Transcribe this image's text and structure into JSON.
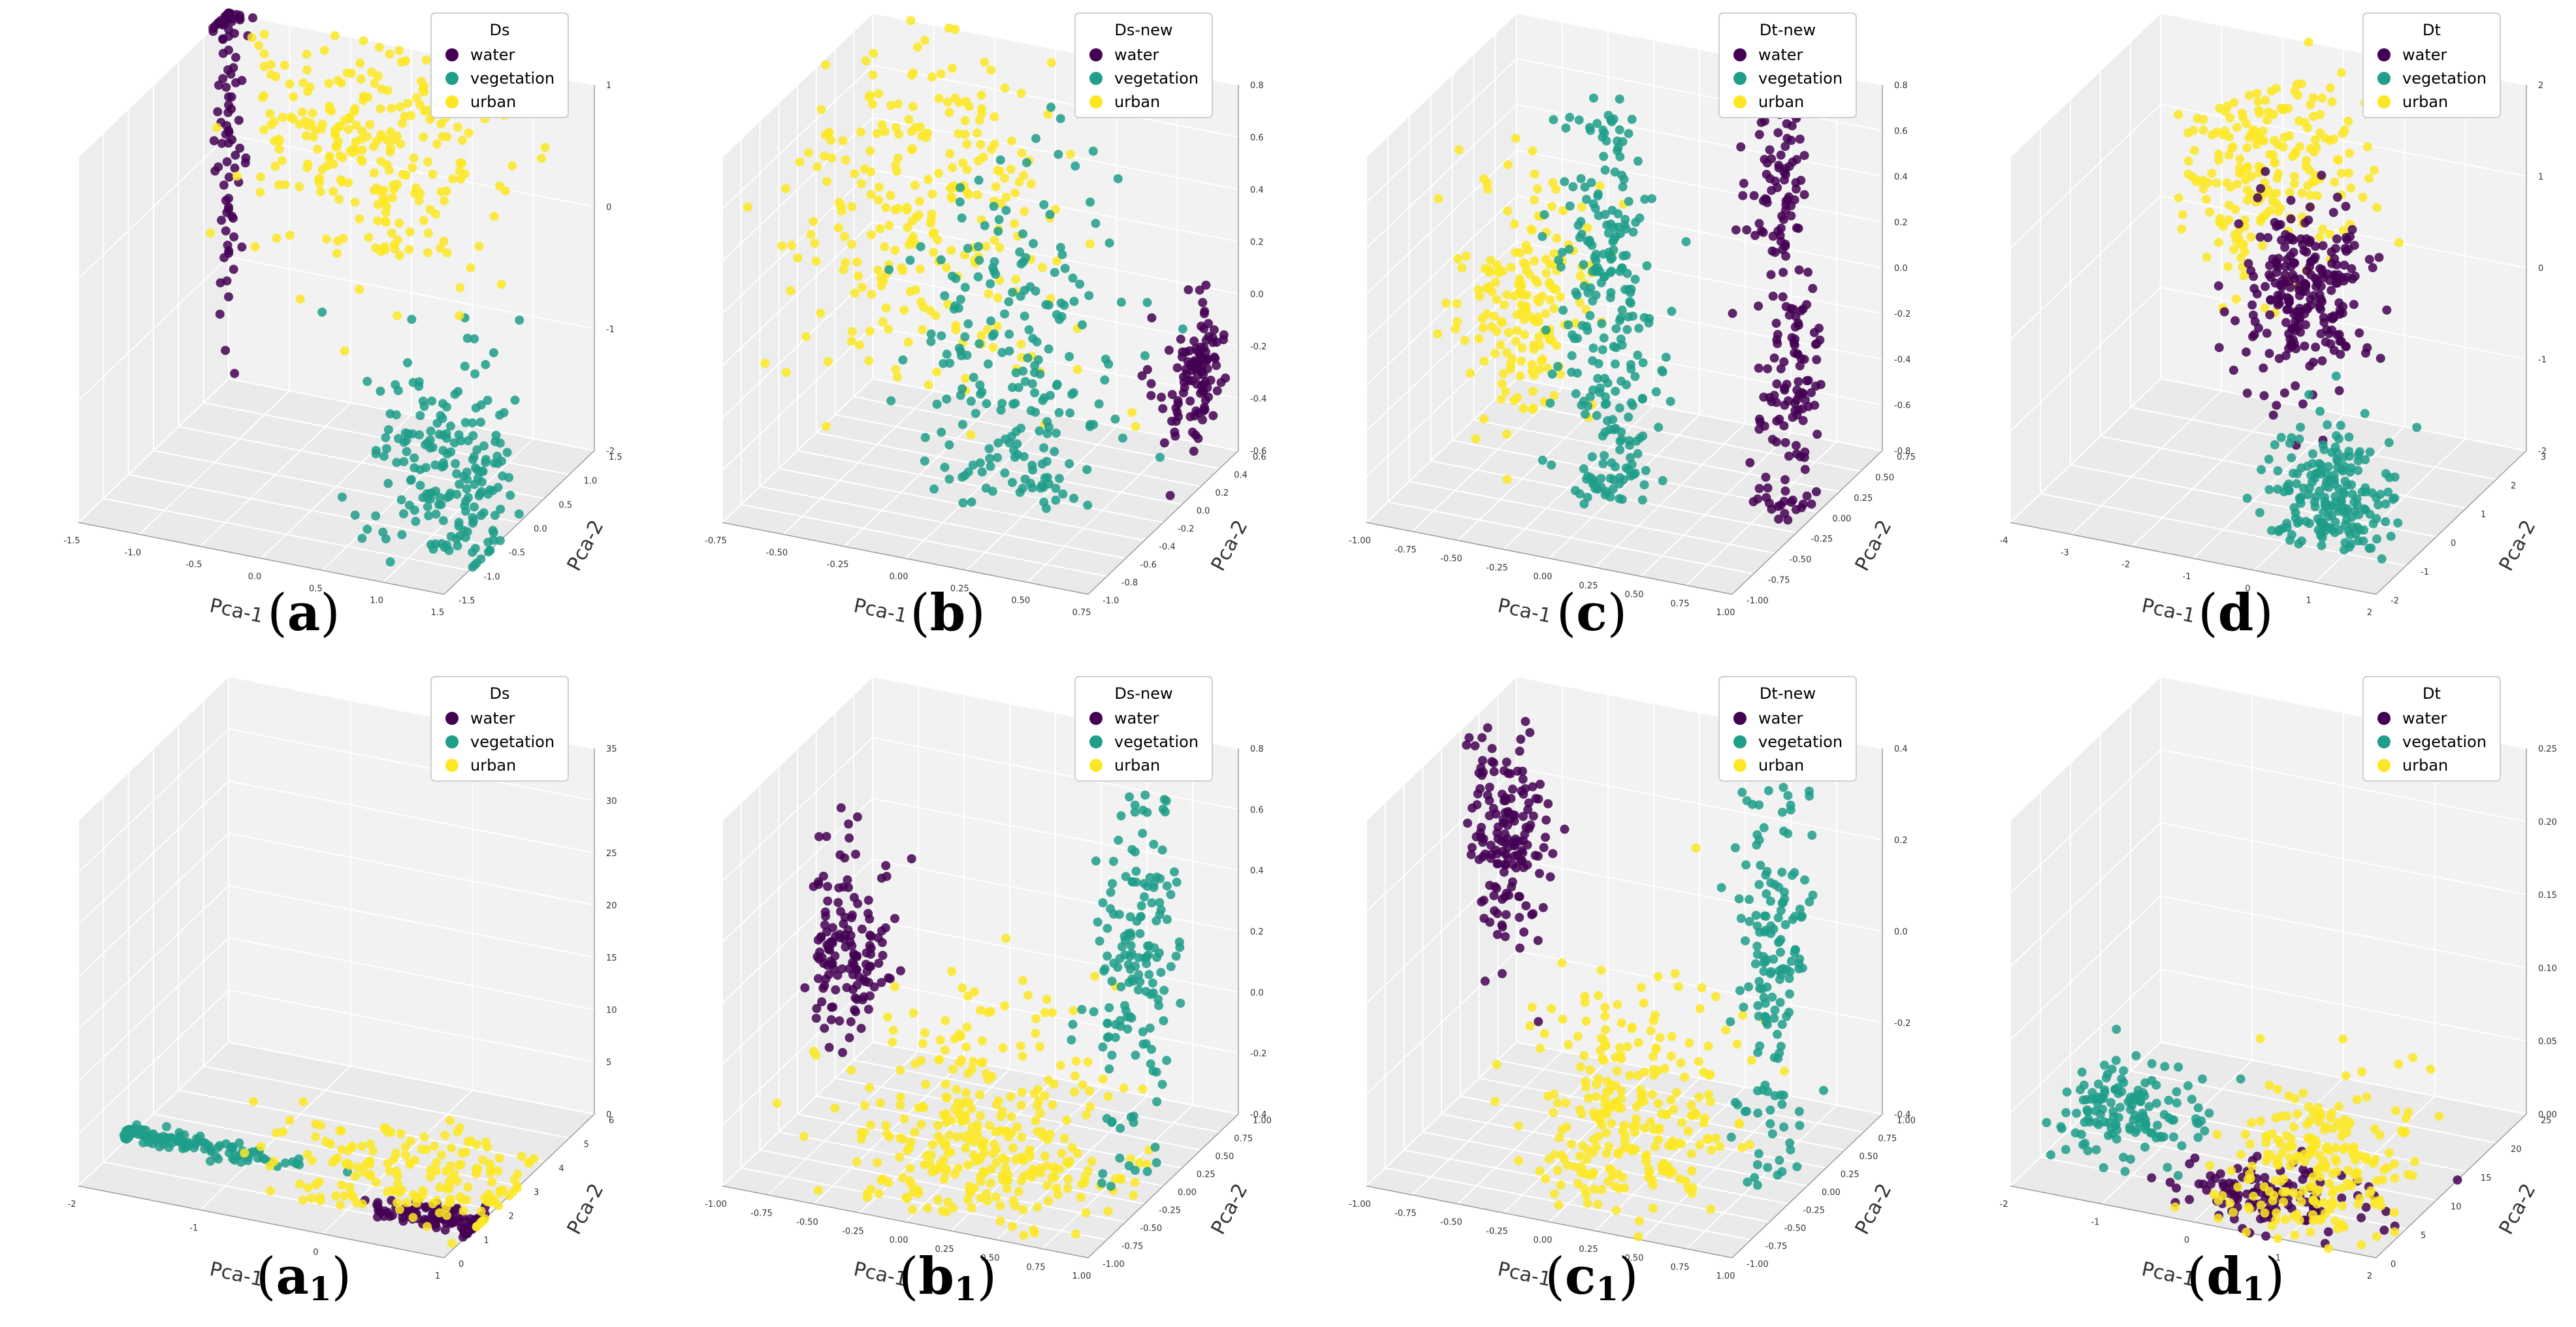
{
  "colors": {
    "water": "#440154",
    "vegetation": "#1f9e89",
    "urban": "#fde725"
  },
  "chart_data": [
    {
      "type": "scatter",
      "caption_letter": "a",
      "caption_sub": "",
      "legend_title": "Ds",
      "legend_items": [
        "water",
        "vegetation",
        "urban"
      ],
      "xlabel": "Pca-1",
      "ylabel": "Pca-2",
      "xticks": [
        "-1.5",
        "-1.0",
        "-0.5",
        "0.0",
        "0.5",
        "1.0",
        "1.5"
      ],
      "yticks": [
        "-1.5",
        "-1.0",
        "-0.5",
        "0.0",
        "0.5",
        "1.0",
        "1.5"
      ],
      "zticks": [
        "1",
        "0",
        "-1",
        "-2"
      ],
      "series": [
        {
          "name": "water",
          "clusters": [
            {
              "x": -1.5,
              "y": 1.4,
              "z": 0.3,
              "sx": 0.1,
              "sy": 0.15,
              "sz": 0.9,
              "n": 90
            }
          ]
        },
        {
          "name": "vegetation",
          "clusters": [
            {
              "x": 1.2,
              "y": -0.6,
              "z": -1.4,
              "sx": 0.35,
              "sy": 0.3,
              "sz": 0.45,
              "n": 200
            }
          ]
        },
        {
          "name": "urban",
          "clusters": [
            {
              "x": -0.1,
              "y": 0.9,
              "z": 0.4,
              "sx": 0.5,
              "sy": 0.35,
              "sz": 0.5,
              "n": 260
            }
          ]
        }
      ]
    },
    {
      "type": "scatter",
      "caption_letter": "b",
      "caption_sub": "",
      "legend_title": "Ds-new",
      "legend_items": [
        "water",
        "vegetation",
        "urban"
      ],
      "xlabel": "Pca-1",
      "ylabel": "Pca-2",
      "xticks": [
        "-0.75",
        "-0.50",
        "-0.25",
        "0.00",
        "0.25",
        "0.50",
        "0.75"
      ],
      "yticks": [
        "-1.0",
        "-0.8",
        "-0.6",
        "-0.4",
        "-0.2",
        "0.0",
        "0.2",
        "0.4",
        "0.6"
      ],
      "zticks": [
        "0.8",
        "0.6",
        "0.4",
        "0.2",
        "0.0",
        "-0.2",
        "-0.4",
        "-0.6"
      ],
      "series": [
        {
          "name": "water",
          "clusters": [
            {
              "x": 0.75,
              "y": 0.2,
              "z": -0.2,
              "sx": 0.1,
              "sy": 0.1,
              "sz": 0.12,
              "n": 110
            }
          ]
        },
        {
          "name": "urban",
          "clusters": [
            {
              "x": -0.35,
              "y": 0.1,
              "z": 0.3,
              "sx": 0.3,
              "sy": 0.3,
              "sz": 0.35,
              "n": 260
            }
          ]
        },
        {
          "name": "vegetation",
          "clusters": [
            {
              "x": 0.1,
              "y": -0.1,
              "z": -0.15,
              "sx": 0.2,
              "sy": 0.2,
              "sz": 0.4,
              "n": 220
            }
          ]
        }
      ]
    },
    {
      "type": "scatter",
      "caption_letter": "c",
      "caption_sub": "",
      "legend_title": "Dt-new",
      "legend_items": [
        "water",
        "vegetation",
        "urban"
      ],
      "xlabel": "Pca-1",
      "ylabel": "Pca-2",
      "xticks": [
        "-1.00",
        "-0.75",
        "-0.50",
        "-0.25",
        "0.00",
        "0.25",
        "0.50",
        "0.75",
        "1.00"
      ],
      "yticks": [
        "-1.00",
        "-0.75",
        "-0.50",
        "-0.25",
        "0.00",
        "0.25",
        "0.50",
        "0.75"
      ],
      "zticks": [
        "0.8",
        "0.6",
        "0.4",
        "0.2",
        "0.0",
        "-0.2",
        "-0.4",
        "-0.6",
        "-0.8"
      ],
      "series": [
        {
          "name": "urban",
          "clusters": [
            {
              "x": -0.6,
              "y": 0.0,
              "z": -0.1,
              "sx": 0.15,
              "sy": 0.2,
              "sz": 0.25,
              "n": 180
            }
          ]
        },
        {
          "name": "vegetation",
          "clusters": [
            {
              "x": -0.1,
              "y": -0.1,
              "z": -0.1,
              "sx": 0.12,
              "sy": 0.15,
              "sz": 0.55,
              "n": 260
            }
          ]
        },
        {
          "name": "water",
          "clusters": [
            {
              "x": 0.65,
              "y": 0.3,
              "z": 0.5,
              "sx": 0.08,
              "sy": 0.1,
              "sz": 0.2,
              "n": 80
            },
            {
              "x": 0.85,
              "y": 0.0,
              "z": -0.35,
              "sx": 0.08,
              "sy": 0.1,
              "sz": 0.3,
              "n": 120
            }
          ]
        }
      ]
    },
    {
      "type": "scatter",
      "caption_letter": "d",
      "caption_sub": "",
      "legend_title": "Dt",
      "legend_items": [
        "water",
        "vegetation",
        "urban"
      ],
      "xlabel": "Pca-1",
      "ylabel": "Pca-2",
      "xticks": [
        "-4",
        "-3",
        "-2",
        "-1",
        "0",
        "1",
        "2"
      ],
      "yticks": [
        "-2",
        "-1",
        "0",
        "1",
        "2",
        "3"
      ],
      "zticks": [
        "2",
        "1",
        "0",
        "-1",
        "-2"
      ],
      "series": [
        {
          "name": "urban",
          "clusters": [
            {
              "x": -1.3,
              "y": 1.2,
              "z": 1.2,
              "sx": 0.7,
              "sy": 0.7,
              "sz": 0.6,
              "n": 220
            }
          ]
        },
        {
          "name": "water",
          "clusters": [
            {
              "x": -0.6,
              "y": 0.8,
              "z": 0.1,
              "sx": 0.5,
              "sy": 0.5,
              "sz": 0.45,
              "n": 240
            }
          ]
        },
        {
          "name": "vegetation",
          "clusters": [
            {
              "x": 0.5,
              "y": -0.5,
              "z": -1.6,
              "sx": 0.5,
              "sy": 0.45,
              "sz": 0.4,
              "n": 200
            }
          ]
        }
      ]
    },
    {
      "type": "scatter",
      "caption_letter": "a",
      "caption_sub": "1",
      "legend_title": "Ds",
      "legend_items": [
        "water",
        "vegetation",
        "urban"
      ],
      "xlabel": "Pca-1",
      "ylabel": "Pca-2",
      "xticks": [
        "-2",
        "-1",
        "0",
        "1"
      ],
      "yticks": [
        "0",
        "1",
        "2",
        "3",
        "4",
        "5",
        "6"
      ],
      "zticks": [
        "35",
        "30",
        "25",
        "20",
        "15",
        "10",
        "5",
        "0"
      ],
      "series": [
        {
          "name": "vegetation",
          "clusters": [
            {
              "x": -1.6,
              "y": 2.0,
              "z": 0.5,
              "sx": 0.5,
              "sy": 0.15,
              "sz": 0.2,
              "n": 120
            }
          ]
        },
        {
          "name": "water",
          "clusters": [
            {
              "x": 0.8,
              "y": 1.2,
              "z": 0.5,
              "sx": 0.35,
              "sy": 0.2,
              "sz": 0.2,
              "n": 120
            }
          ]
        },
        {
          "name": "urban",
          "clusters": [
            {
              "x": 0.4,
              "y": 2.2,
              "z": 1.2,
              "sx": 0.6,
              "sy": 0.8,
              "sz": 1.2,
              "n": 180
            }
          ]
        }
      ]
    },
    {
      "type": "scatter",
      "caption_letter": "b",
      "caption_sub": "1",
      "legend_title": "Ds-new",
      "legend_items": [
        "water",
        "vegetation",
        "urban"
      ],
      "xlabel": "Pca-1",
      "ylabel": "Pca-2",
      "xticks": [
        "-1.00",
        "-0.75",
        "-0.50",
        "-0.25",
        "0.00",
        "0.25",
        "0.50",
        "0.75",
        "1.00"
      ],
      "yticks": [
        "-1.00",
        "-0.75",
        "-0.50",
        "-0.25",
        "0.00",
        "0.25",
        "0.50",
        "0.75",
        "1.00"
      ],
      "zticks": [
        "0.8",
        "0.6",
        "0.4",
        "0.2",
        "0.0",
        "-0.2",
        "-0.4"
      ],
      "series": [
        {
          "name": "water",
          "clusters": [
            {
              "x": -0.85,
              "y": 0.3,
              "z": 0.1,
              "sx": 0.12,
              "sy": 0.12,
              "sz": 0.15,
              "n": 140
            }
          ]
        },
        {
          "name": "urban",
          "clusters": [
            {
              "x": 0.1,
              "y": -0.2,
              "z": -0.35,
              "sx": 0.35,
              "sy": 0.35,
              "sz": 0.25,
              "n": 320
            }
          ]
        },
        {
          "name": "vegetation",
          "clusters": [
            {
              "x": 0.8,
              "y": 0.1,
              "z": 0.25,
              "sx": 0.08,
              "sy": 0.25,
              "sz": 0.3,
              "n": 160
            }
          ]
        }
      ]
    },
    {
      "type": "scatter",
      "caption_letter": "c",
      "caption_sub": "1",
      "legend_title": "Dt-new",
      "legend_items": [
        "water",
        "vegetation",
        "urban"
      ],
      "xlabel": "Pca-1",
      "ylabel": "Pca-2",
      "xticks": [
        "-1.00",
        "-0.75",
        "-0.50",
        "-0.25",
        "0.00",
        "0.25",
        "0.50",
        "0.75",
        "1.00"
      ],
      "yticks": [
        "-1.00",
        "-0.75",
        "-0.50",
        "-0.25",
        "0.00",
        "0.25",
        "0.50",
        "0.75",
        "1.00"
      ],
      "zticks": [
        "0.4",
        "0.2",
        "0.0",
        "-0.2",
        "-0.4"
      ],
      "series": [
        {
          "name": "water",
          "clusters": [
            {
              "x": -0.8,
              "y": 0.4,
              "z": 0.15,
              "sx": 0.12,
              "sy": 0.1,
              "sz": 0.12,
              "n": 160
            }
          ]
        },
        {
          "name": "urban",
          "clusters": [
            {
              "x": 0.1,
              "y": -0.2,
              "z": -0.3,
              "sx": 0.25,
              "sy": 0.25,
              "sz": 0.15,
              "n": 260
            }
          ]
        },
        {
          "name": "vegetation",
          "clusters": [
            {
              "x": 0.75,
              "y": 0.15,
              "z": 0.0,
              "sx": 0.06,
              "sy": 0.2,
              "sz": 0.25,
              "n": 160
            }
          ]
        }
      ]
    },
    {
      "type": "scatter",
      "caption_letter": "d",
      "caption_sub": "1",
      "legend_title": "Dt",
      "legend_items": [
        "water",
        "vegetation",
        "urban"
      ],
      "xlabel": "Pca-1",
      "ylabel": "Pca-2",
      "xticks": [
        "-2",
        "-1",
        "0",
        "1",
        "2"
      ],
      "yticks": [
        "0",
        "5",
        "10",
        "15",
        "20",
        "25"
      ],
      "zticks": [
        "0.25",
        "0.20",
        "0.15",
        "0.10",
        "0.05",
        "0.00"
      ],
      "series": [
        {
          "name": "vegetation",
          "clusters": [
            {
              "x": -1.5,
              "y": 12.0,
              "z": 0.01,
              "sx": 0.4,
              "sy": 3.0,
              "sz": 0.01,
              "n": 140
            }
          ]
        },
        {
          "name": "water",
          "clusters": [
            {
              "x": 0.5,
              "y": 6.0,
              "z": 0.0,
              "sx": 0.5,
              "sy": 2.5,
              "sz": 0.005,
              "n": 120
            }
          ]
        },
        {
          "name": "urban",
          "clusters": [
            {
              "x": 0.9,
              "y": 7.0,
              "z": 0.02,
              "sx": 0.5,
              "sy": 4.0,
              "sz": 0.03,
              "n": 220
            }
          ]
        }
      ]
    }
  ]
}
